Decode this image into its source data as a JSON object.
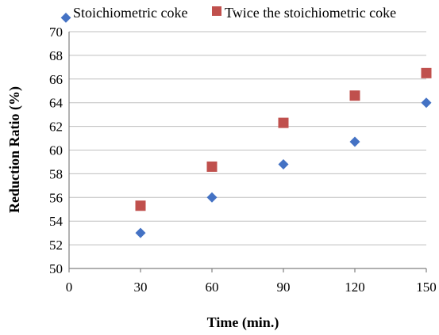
{
  "chart_data": {
    "type": "scatter",
    "title": "",
    "xlabel": "Time (min.)",
    "ylabel": "Reduction Ratio (%)",
    "xlim": [
      0,
      150
    ],
    "ylim": [
      50,
      70
    ],
    "x_ticks": [
      0,
      30,
      60,
      90,
      120,
      150
    ],
    "y_ticks": [
      50,
      52,
      54,
      56,
      58,
      60,
      62,
      64,
      66,
      68,
      70
    ],
    "grid": "horizontal",
    "legend_position": "top",
    "series": [
      {
        "name": "Stoichiometric coke",
        "marker": "diamond",
        "color": "#4472c4",
        "x": [
          30,
          60,
          90,
          120,
          150
        ],
        "y": [
          53.0,
          56.0,
          58.8,
          60.7,
          64.0
        ]
      },
      {
        "name": "Twice the stoichiometric coke",
        "marker": "square",
        "color": "#c0504d",
        "x": [
          30,
          60,
          90,
          120,
          150
        ],
        "y": [
          55.3,
          58.6,
          62.3,
          64.6,
          66.5
        ]
      }
    ]
  }
}
